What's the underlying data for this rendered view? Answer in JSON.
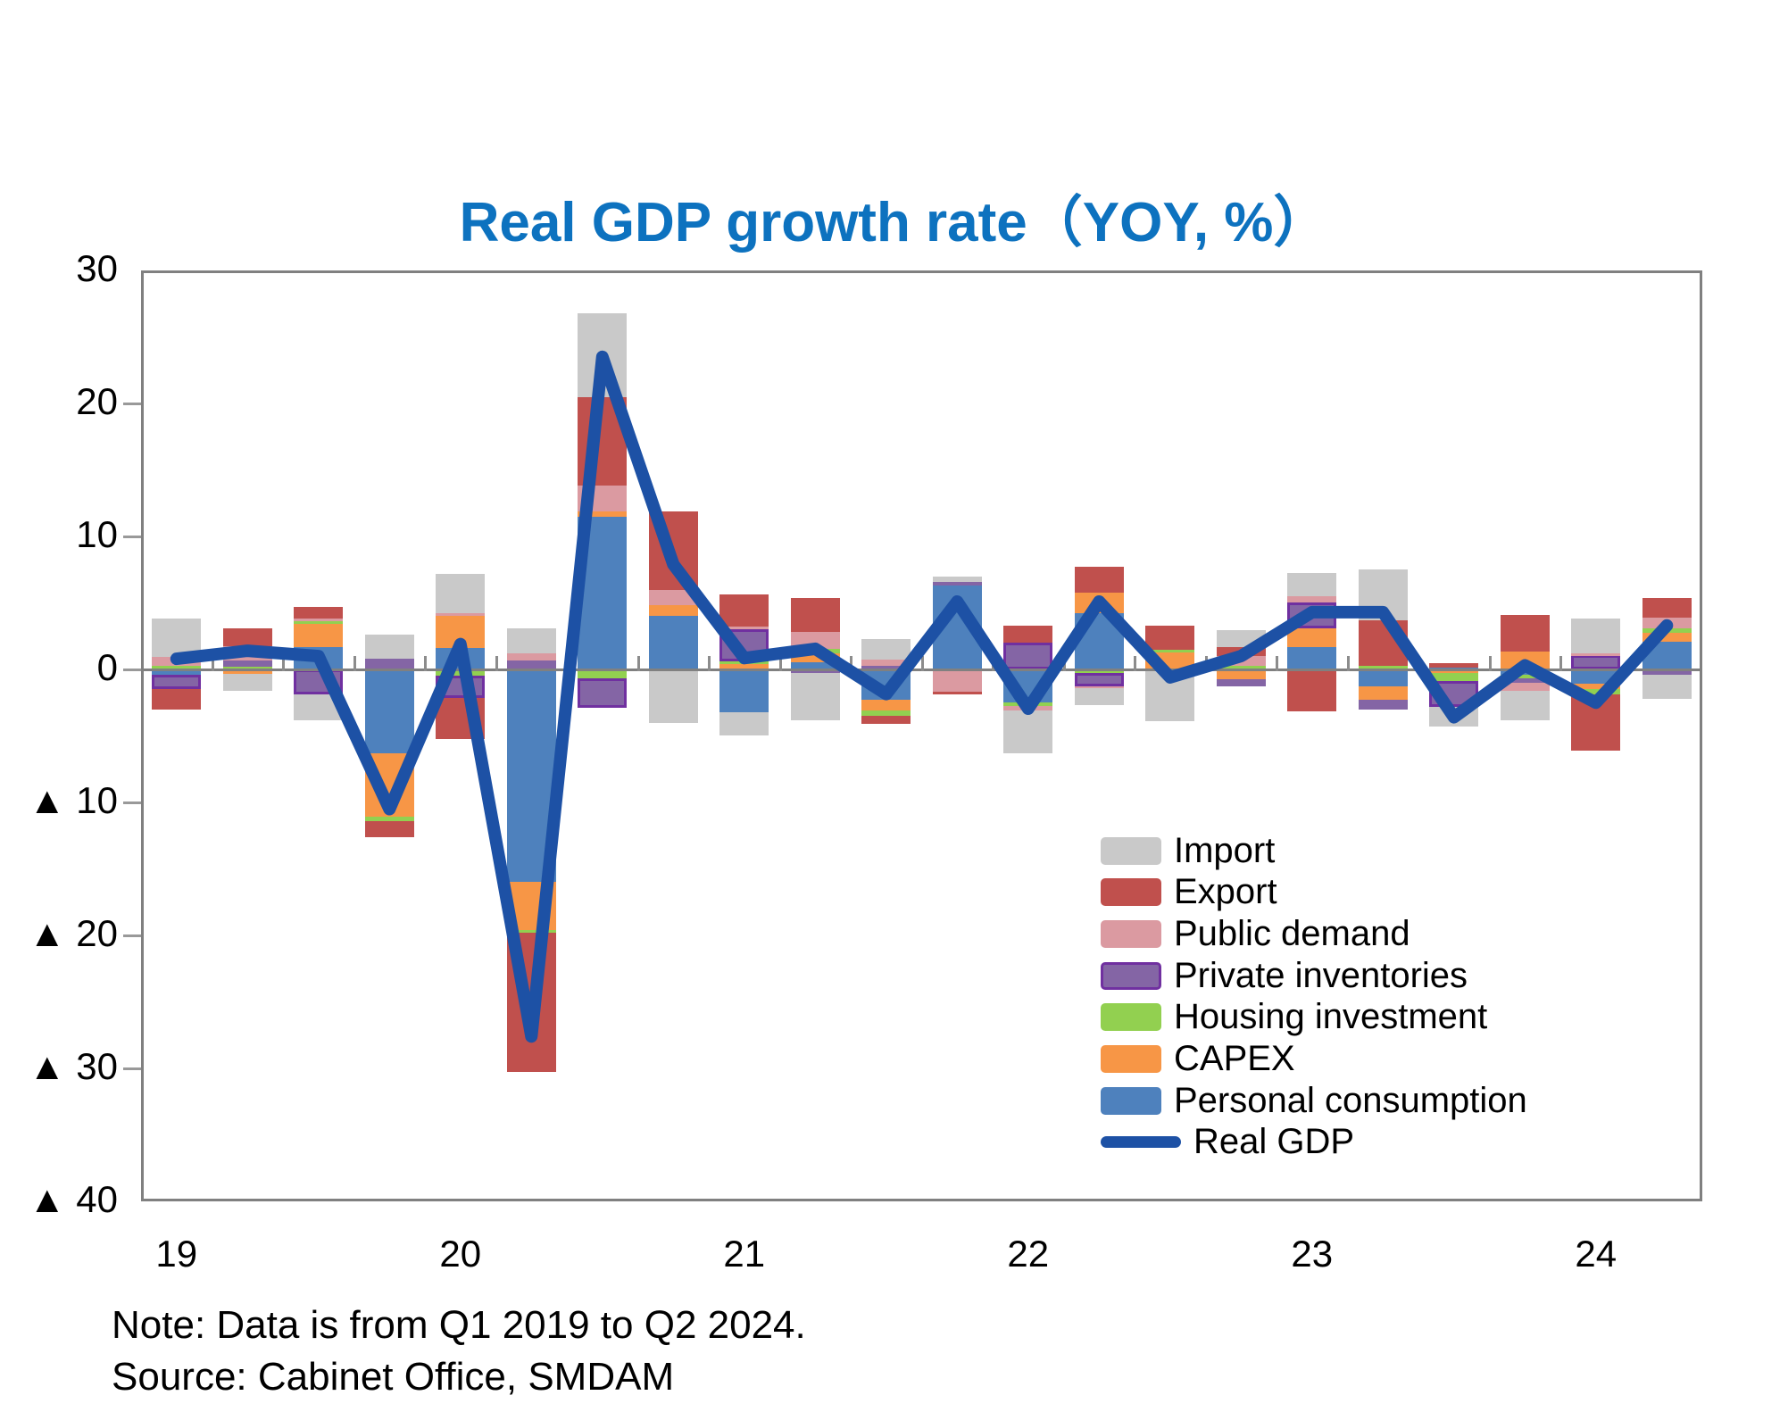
{
  "title": {
    "text": "Real GDP growth rate（YOY, %）",
    "color": "#0D72BF"
  },
  "note": "Note: Data is from Q1 2019 to Q2 2024.",
  "source": "Source: Cabinet Office, SMDAM",
  "y_axis": {
    "tick_labels": [
      "30",
      "20",
      "10",
      "0",
      "▲ 10",
      "▲ 20",
      "▲ 30",
      "▲ 40"
    ],
    "tick_values": [
      30,
      20,
      10,
      0,
      -10,
      -20,
      -30,
      -40
    ]
  },
  "x_axis": {
    "year_labels": [
      {
        "label": "19",
        "quarter_index": 0
      },
      {
        "label": "20",
        "quarter_index": 4
      },
      {
        "label": "21",
        "quarter_index": 8
      },
      {
        "label": "22",
        "quarter_index": 12
      },
      {
        "label": "23",
        "quarter_index": 16
      },
      {
        "label": "24",
        "quarter_index": 20
      }
    ]
  },
  "legend": [
    {
      "label": "Import",
      "color": "#C9C9C9",
      "type": "box"
    },
    {
      "label": "Export",
      "color": "#C0504D",
      "type": "box"
    },
    {
      "label": "Public demand",
      "color": "#DB9AA1",
      "type": "box"
    },
    {
      "label": "Private inventories",
      "color": "#8465A5",
      "border": "#7030A0",
      "type": "box"
    },
    {
      "label": "Housing investment",
      "color": "#92D050",
      "type": "box"
    },
    {
      "label": "CAPEX",
      "color": "#F79646",
      "type": "box"
    },
    {
      "label": "Personal consumption",
      "color": "#4E81BD",
      "type": "box"
    },
    {
      "label": "Real GDP",
      "color": "#1D51A5",
      "type": "line"
    }
  ],
  "chart_data": {
    "type": "bar",
    "subtype": "stacked-bar-with-line",
    "title": "Real GDP growth rate（YOY, %）",
    "xlabel": "",
    "ylabel": "",
    "ylim": [
      -40,
      30
    ],
    "grid": false,
    "legend_position": "inside-lower-right",
    "x": [
      "2019Q1",
      "2019Q2",
      "2019Q3",
      "2019Q4",
      "2020Q1",
      "2020Q2",
      "2020Q3",
      "2020Q4",
      "2021Q1",
      "2021Q2",
      "2021Q3",
      "2021Q4",
      "2022Q1",
      "2022Q2",
      "2022Q3",
      "2022Q4",
      "2023Q1",
      "2023Q2",
      "2023Q3",
      "2023Q4",
      "2024Q1",
      "2024Q2"
    ],
    "stack_order_from_zero": [
      "Personal consumption",
      "CAPEX",
      "Housing investment",
      "Private inventories",
      "Public demand",
      "Export",
      "Import"
    ],
    "series": [
      {
        "name": "Personal consumption",
        "color": "#4E81BD",
        "values": [
          -0.4,
          0.05,
          1.7,
          -6.3,
          1.6,
          -16.0,
          11.5,
          4.0,
          -3.2,
          0.55,
          -2.3,
          6.3,
          -2.5,
          4.25,
          0.0,
          0.1,
          1.7,
          -1.3,
          0.15,
          -0.4,
          -1.1,
          2.1
        ]
      },
      {
        "name": "CAPEX",
        "color": "#F79646",
        "values": [
          0.0,
          -0.35,
          1.75,
          -4.8,
          2.5,
          -3.6,
          0.4,
          0.85,
          0.5,
          0.65,
          -0.8,
          0.0,
          0.0,
          1.5,
          1.35,
          -0.75,
          1.4,
          -1.0,
          -0.3,
          1.35,
          -0.35,
          0.65
        ]
      },
      {
        "name": "Housing investment",
        "color": "#92D050",
        "values": [
          0.25,
          0.12,
          0.15,
          -0.3,
          -0.45,
          -0.2,
          -0.7,
          0.0,
          0.1,
          0.35,
          -0.4,
          0.0,
          -0.25,
          -0.25,
          0.15,
          0.2,
          0.0,
          0.3,
          -0.55,
          -0.3,
          -0.45,
          0.35
        ]
      },
      {
        "name": "Private inventories",
        "color": "#8465A5",
        "border_color": "#7030A0",
        "values": [
          -1.1,
          0.5,
          -1.9,
          0.8,
          -1.7,
          0.7,
          -2.2,
          0.0,
          2.45,
          -0.3,
          0.3,
          0.25,
          2.0,
          -1.05,
          0.0,
          -0.55,
          1.95,
          -0.7,
          -1.95,
          -0.3,
          1.1,
          -0.4
        ]
      },
      {
        "name": "Public demand",
        "color": "#DB9AA1",
        "values": [
          0.7,
          1.05,
          0.25,
          0.0,
          0.15,
          0.5,
          1.95,
          1.1,
          0.2,
          1.3,
          0.45,
          -1.65,
          -0.35,
          -0.1,
          0.0,
          0.7,
          0.45,
          0.0,
          0.0,
          -0.6,
          0.1,
          0.8
        ]
      },
      {
        "name": "Export",
        "color": "#C0504D",
        "values": [
          -1.55,
          1.4,
          0.85,
          -1.2,
          -3.1,
          -10.5,
          6.6,
          5.9,
          2.4,
          2.55,
          -0.6,
          -0.25,
          1.3,
          2.0,
          1.8,
          0.7,
          -3.15,
          3.4,
          0.35,
          2.75,
          -4.2,
          1.45
        ]
      },
      {
        "name": "Import",
        "color": "#C9C9C9",
        "values": [
          2.85,
          -1.25,
          -1.9,
          1.8,
          2.9,
          1.9,
          6.3,
          -4.0,
          -1.8,
          -3.55,
          1.5,
          0.45,
          -3.2,
          -1.3,
          -3.9,
          1.25,
          1.75,
          3.8,
          -1.5,
          -2.2,
          2.65,
          -1.8
        ]
      }
    ],
    "line": {
      "name": "Real GDP",
      "color": "#1D51A5",
      "values": [
        0.8,
        1.4,
        1.0,
        -10.5,
        1.9,
        -27.6,
        23.5,
        7.9,
        0.85,
        1.55,
        -1.85,
        5.1,
        -2.95,
        5.1,
        -0.6,
        1.0,
        4.3,
        4.3,
        -3.6,
        0.3,
        -2.5,
        3.3
      ]
    }
  }
}
